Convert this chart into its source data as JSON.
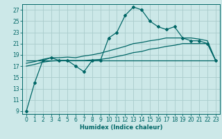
{
  "xlabel": "Humidex (Indice chaleur)",
  "bg_color": "#cce8e8",
  "grid_color": "#aacccc",
  "line_color": "#006666",
  "xlim": [
    -0.5,
    23.5
  ],
  "ylim": [
    8.5,
    28
  ],
  "yticks": [
    9,
    11,
    13,
    15,
    17,
    19,
    21,
    23,
    25,
    27
  ],
  "xticks": [
    0,
    1,
    2,
    3,
    4,
    5,
    6,
    7,
    8,
    9,
    10,
    11,
    12,
    13,
    14,
    15,
    16,
    17,
    18,
    19,
    20,
    21,
    22,
    23
  ],
  "series": [
    {
      "x": [
        0,
        1,
        2,
        3,
        4,
        5,
        6,
        7,
        8,
        9,
        10,
        11,
        12,
        13,
        14,
        15,
        16,
        17,
        18,
        19,
        20,
        21,
        22,
        23
      ],
      "y": [
        9,
        14,
        18,
        18.5,
        18,
        18,
        17,
        16,
        18,
        18,
        22,
        23,
        26,
        27.5,
        27,
        25,
        24,
        23.5,
        24,
        22,
        21.5,
        21.5,
        21,
        18
      ],
      "marker": true,
      "lw": 0.9
    },
    {
      "x": [
        0,
        1,
        2,
        3,
        4,
        5,
        6,
        7,
        8,
        9,
        10,
        11,
        12,
        13,
        14,
        15,
        16,
        17,
        18,
        19,
        20,
        21,
        22,
        23
      ],
      "y": [
        17.5,
        17.8,
        18.2,
        18.5,
        18.5,
        18.6,
        18.5,
        18.8,
        19.0,
        19.3,
        19.7,
        20.1,
        20.5,
        21.0,
        21.2,
        21.5,
        21.7,
        22.0,
        22.0,
        22.0,
        22.0,
        21.8,
        21.5,
        18.0
      ],
      "marker": false,
      "lw": 0.9
    },
    {
      "x": [
        0,
        1,
        2,
        3,
        4,
        5,
        6,
        7,
        8,
        9,
        10,
        11,
        12,
        13,
        14,
        15,
        16,
        17,
        18,
        19,
        20,
        21,
        22,
        23
      ],
      "y": [
        17.0,
        17.3,
        17.7,
        17.9,
        18.0,
        18.0,
        18.0,
        18.0,
        18.1,
        18.2,
        18.4,
        18.7,
        19.0,
        19.4,
        19.6,
        20.0,
        20.2,
        20.5,
        20.7,
        21.0,
        21.0,
        21.0,
        21.0,
        18.0
      ],
      "marker": false,
      "lw": 0.9
    },
    {
      "x": [
        0,
        1,
        2,
        3,
        4,
        5,
        6,
        7,
        8,
        9,
        10,
        11,
        12,
        13,
        14,
        15,
        16,
        17,
        18,
        19,
        20,
        21,
        22,
        23
      ],
      "y": [
        18.0,
        18.0,
        18.0,
        18.0,
        18.0,
        18.0,
        18.0,
        18.0,
        18.0,
        18.0,
        18.0,
        18.0,
        18.0,
        18.0,
        18.0,
        18.0,
        18.0,
        18.0,
        18.0,
        18.0,
        18.0,
        18.0,
        18.0,
        18.0
      ],
      "marker": false,
      "lw": 0.9
    }
  ]
}
